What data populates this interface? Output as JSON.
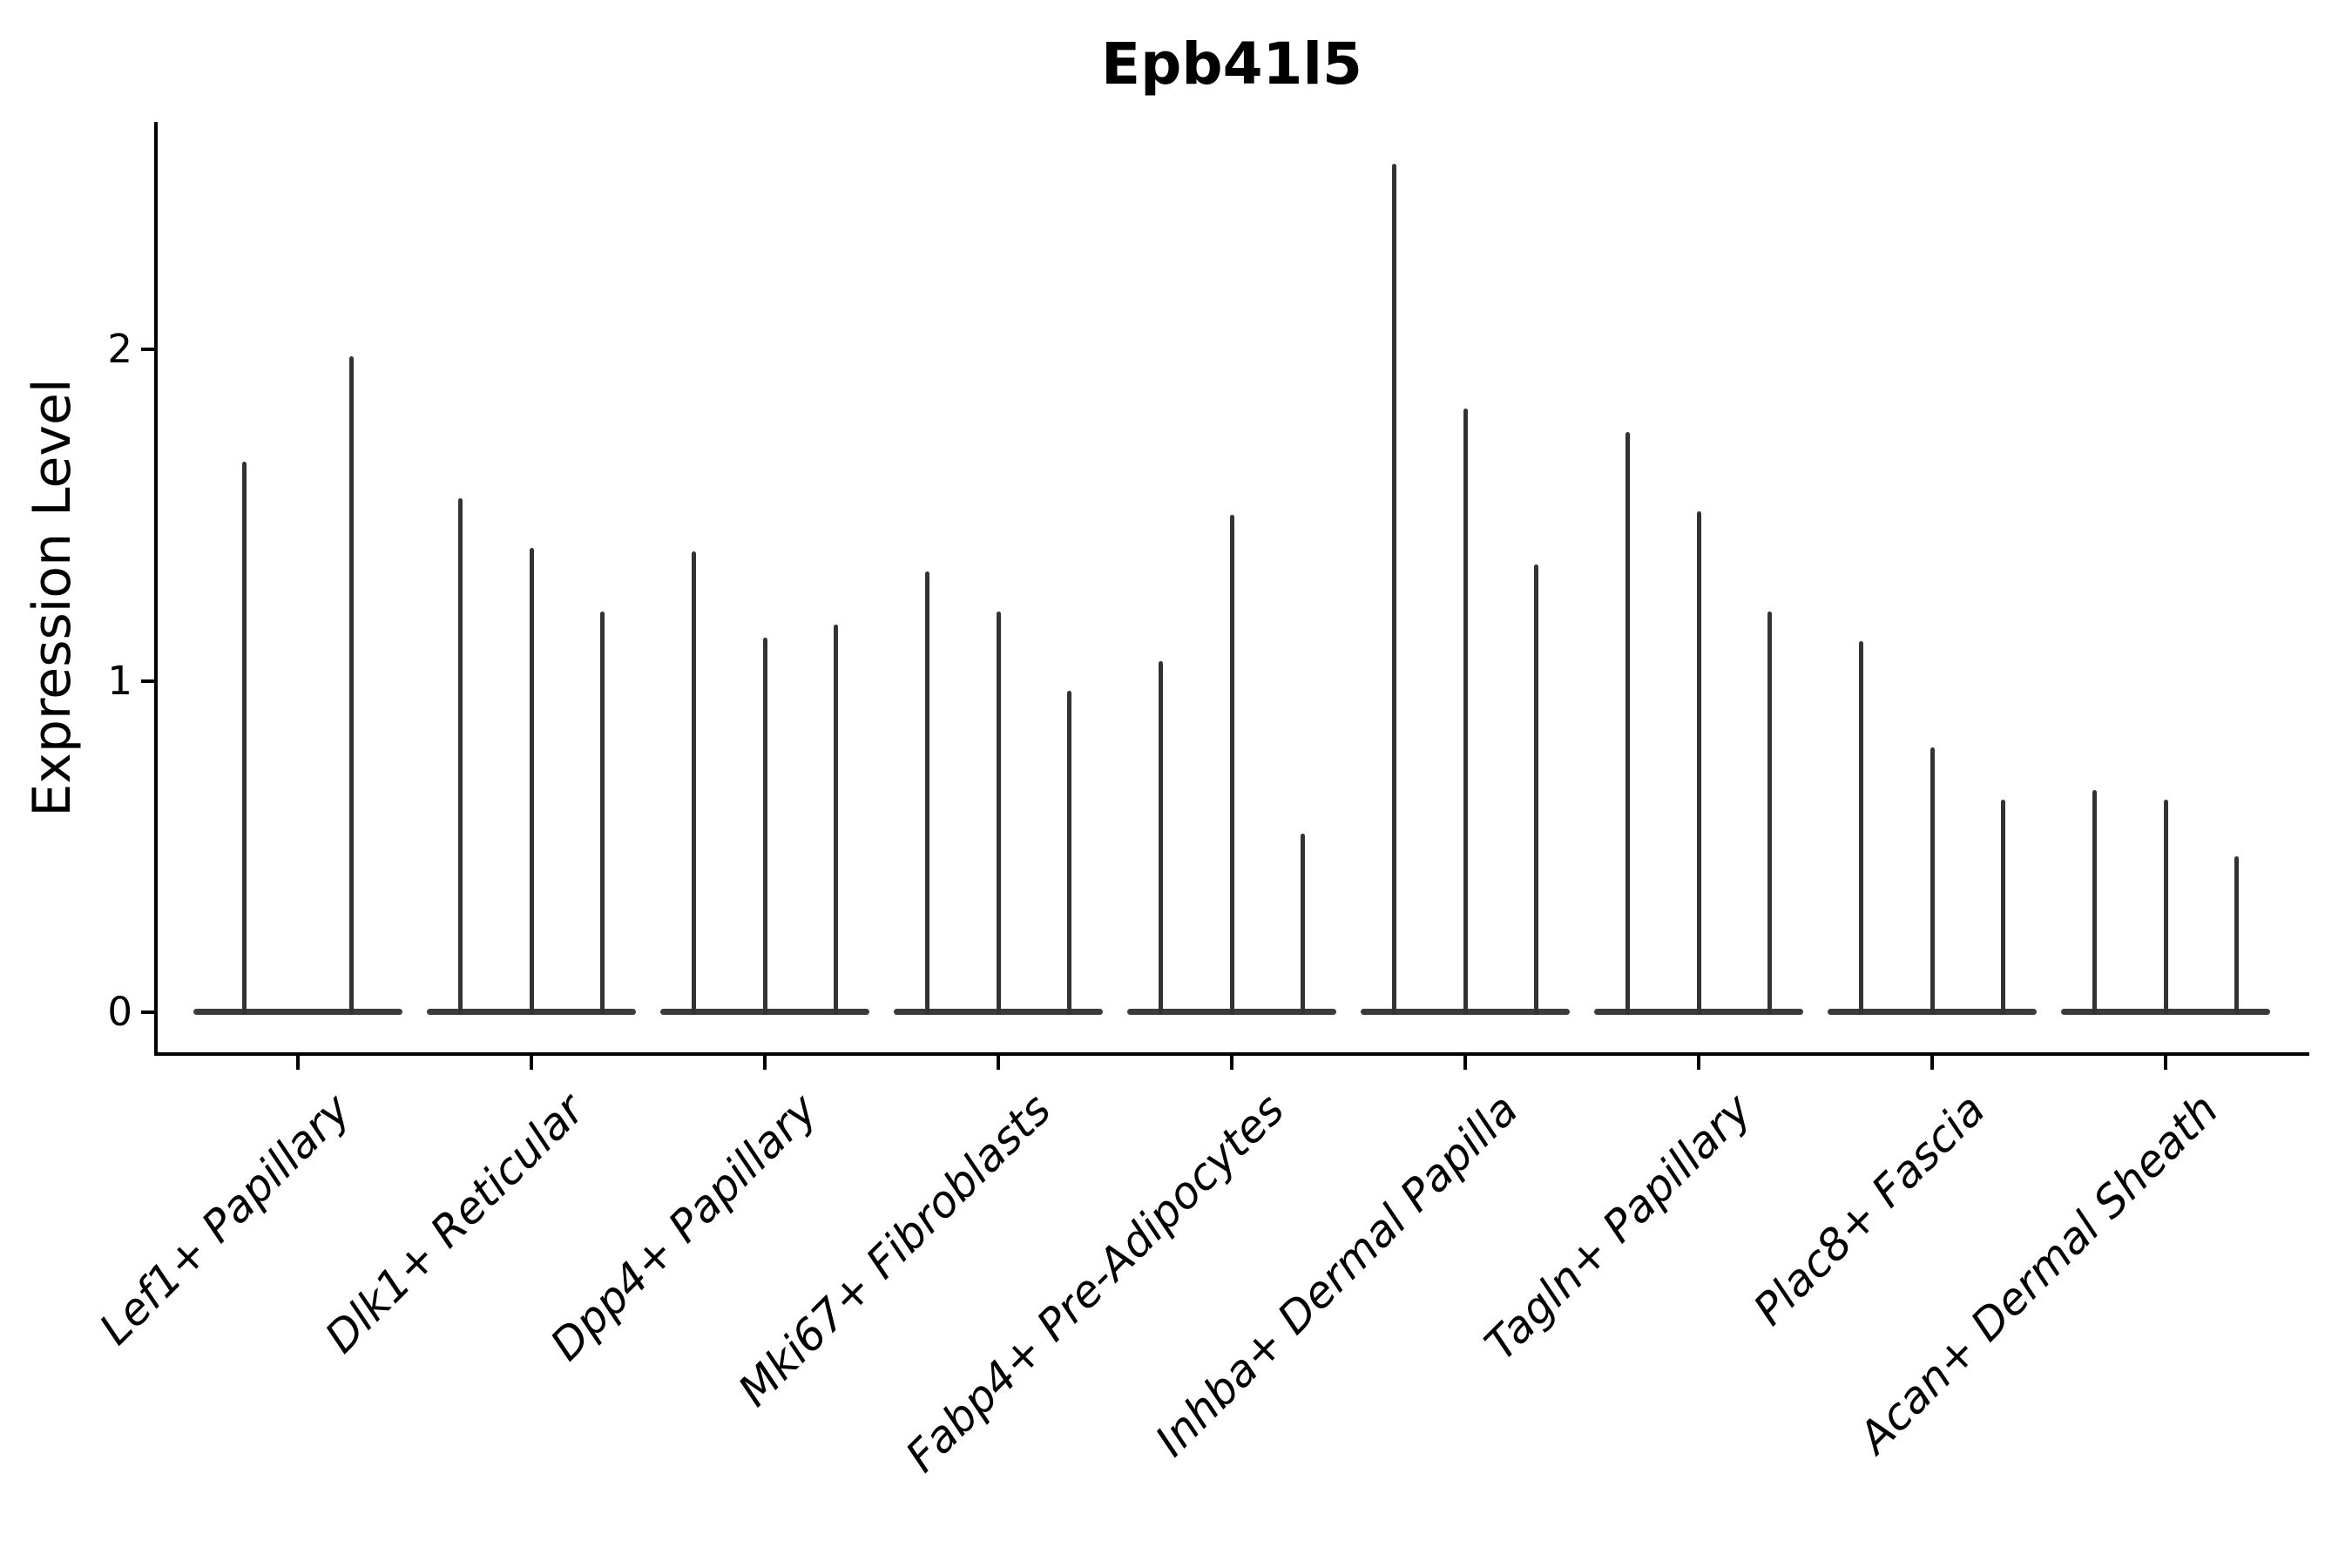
{
  "chart_data": {
    "type": "violin",
    "title": "Epb41l5",
    "ylabel": "Expression Level",
    "xlabel": "",
    "yticks": [
      0,
      1,
      2
    ],
    "ylim": [
      -0.13,
      2.69
    ],
    "grid": false,
    "legend": false,
    "style_note": "needle violins: wide flat base at 0 expression with a thin spike up to the max expression value",
    "ink_color": "#333333",
    "categories": [
      "Lef1+ Papillary",
      "Dlk1+ Reticular",
      "Dpp4+ Papillary",
      "Mki67+ Fibroblasts",
      "Fabp4+ Pre-Adipocytes",
      "Inhba+ Dermal Papilla",
      "Tagln+ Papillary",
      "Plac8+ Fascia",
      "Acan+ Dermal Sheath"
    ],
    "groups": [
      {
        "category": "Lef1+ Papillary",
        "spike_maxima": [
          1.66,
          1.98
        ]
      },
      {
        "category": "Dlk1+ Reticular",
        "spike_maxima": [
          1.55,
          1.4,
          1.21
        ]
      },
      {
        "category": "Dpp4+ Papillary",
        "spike_maxima": [
          1.39,
          1.13,
          1.17
        ]
      },
      {
        "category": "Mki67+ Fibroblasts",
        "spike_maxima": [
          1.33,
          1.21,
          0.97
        ]
      },
      {
        "category": "Fabp4+ Pre-Adipocytes",
        "spike_maxima": [
          1.06,
          1.5,
          0.54
        ]
      },
      {
        "category": "Inhba+ Dermal Papilla",
        "spike_maxima": [
          2.56,
          1.82,
          1.35
        ]
      },
      {
        "category": "Tagln+ Papillary",
        "spike_maxima": [
          1.75,
          1.51,
          1.21
        ]
      },
      {
        "category": "Plac8+ Fascia",
        "spike_maxima": [
          1.12,
          0.8,
          0.64
        ]
      },
      {
        "category": "Acan+ Dermal Sheath",
        "spike_maxima": [
          0.67,
          0.64,
          0.47
        ]
      }
    ]
  }
}
